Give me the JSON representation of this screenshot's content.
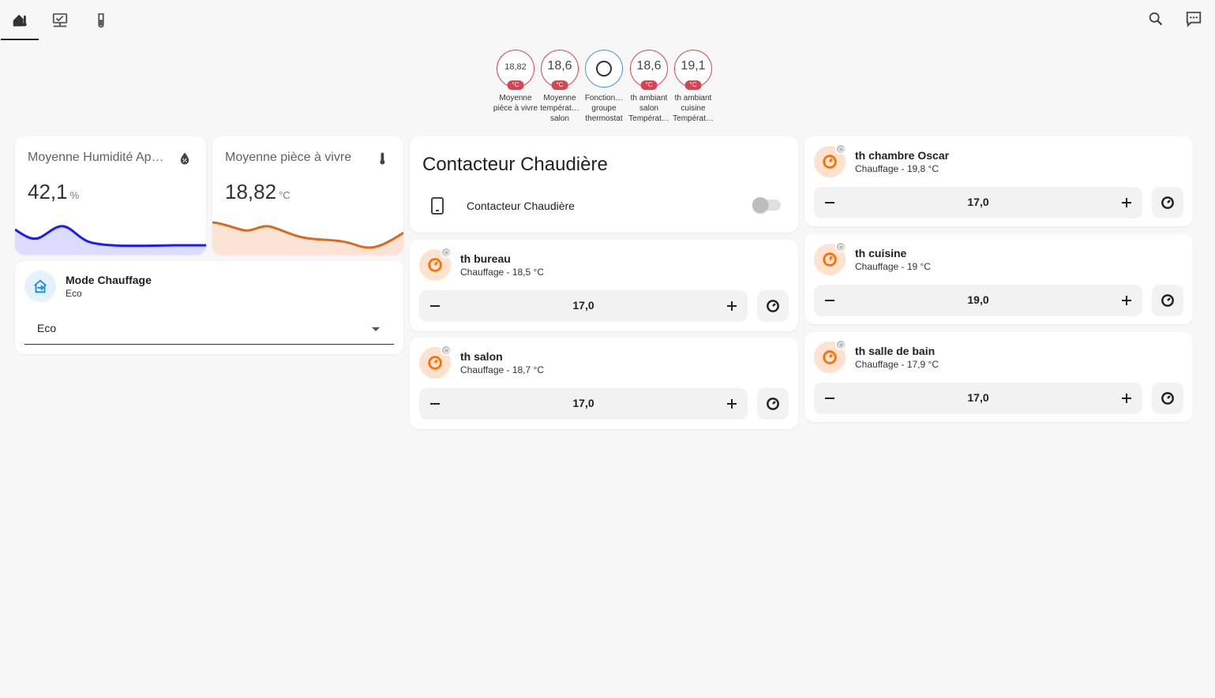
{
  "nav": {
    "tabs": [
      {
        "name": "home",
        "icon": "home-thermometer-icon",
        "active": true
      },
      {
        "name": "network",
        "icon": "monitor-network-icon",
        "active": false
      },
      {
        "name": "test",
        "icon": "test-tube-icon",
        "active": false
      }
    ],
    "actions": [
      {
        "icon": "search-icon"
      },
      {
        "icon": "assist-chat-icon"
      }
    ]
  },
  "badges": [
    {
      "value": "18,82",
      "unit": "°C",
      "label": "Moyenne pièce à vivre"
    },
    {
      "value": "18,6",
      "unit": "°C",
      "label": "Moyenne températ… salon"
    },
    {
      "value": "",
      "unit": "",
      "label": "Fonction… groupe thermostat"
    },
    {
      "value": "18,6",
      "unit": "°C",
      "label": "th ambiant salon Températ…"
    },
    {
      "value": "19,1",
      "unit": "°C",
      "label": "th ambiant cuisine Températ…"
    }
  ],
  "sensor_cards": [
    {
      "title": "Moyenne Humidité Ap…",
      "value": "42,1",
      "unit": "%",
      "icon": "water-percent-icon",
      "color": "#1a1aff",
      "fill": "#dcdcff"
    },
    {
      "title": "Moyenne pièce à vivre",
      "value": "18,82",
      "unit": "°C",
      "icon": "thermometer-icon",
      "color": "#d96a1a",
      "fill": "#fbe3d6"
    }
  ],
  "mode_card": {
    "name": "Mode Chauffage",
    "state": "Eco",
    "selected": "Eco",
    "icon": "home-export-icon"
  },
  "contactor_card": {
    "heading": "Contacteur Chaudière",
    "row_name": "Contacteur Chaudière",
    "row_icon": "cellphone-icon",
    "toggle_on": false
  },
  "thermostats": [
    {
      "name": "th bureau",
      "state": "Chauffage - 18,5 °C",
      "target": "17,0"
    },
    {
      "name": "th salon",
      "state": "Chauffage - 18,7 °C",
      "target": "17,0"
    },
    {
      "name": "th chambre Oscar",
      "state": "Chauffage - 19,8 °C",
      "target": "17,0"
    },
    {
      "name": "th cuisine",
      "state": "Chauffage - 19 °C",
      "target": "19,0"
    },
    {
      "name": "th salle de bain",
      "state": "Chauffage - 17,9 °C",
      "target": "17,0"
    }
  ],
  "colors": {
    "accent_orange": "#ff6f00",
    "badge_red": "#d44452",
    "badge_blue": "#4a90d9"
  }
}
